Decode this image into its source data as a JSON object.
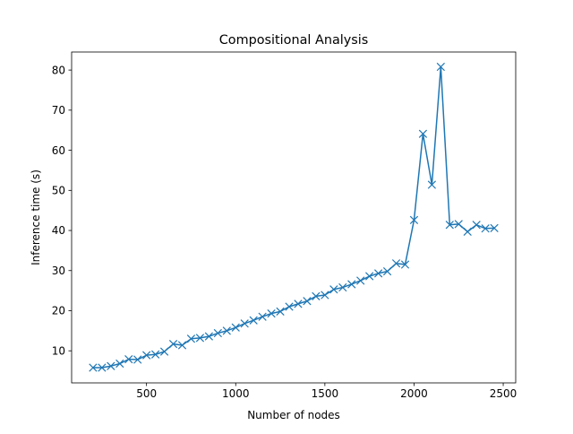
{
  "chart_data": {
    "type": "line",
    "title": "Compositional Analysis",
    "xlabel": "Number of nodes",
    "ylabel": "Inference time (s)",
    "xlim": [
      80,
      2570
    ],
    "ylim": [
      2,
      84.5
    ],
    "xticks": [
      500,
      1000,
      1500,
      2000,
      2500
    ],
    "yticks": [
      10,
      20,
      30,
      40,
      50,
      60,
      70,
      80
    ],
    "grid": false,
    "marker": "x",
    "color": "#1f77b4",
    "series": [
      {
        "x": [
          200,
          250,
          300,
          350,
          400,
          450,
          500,
          550,
          600,
          650,
          700,
          750,
          800,
          850,
          900,
          950,
          1000,
          1050,
          1100,
          1150,
          1200,
          1250,
          1300,
          1350,
          1400,
          1450,
          1500,
          1550,
          1600,
          1650,
          1700,
          1750,
          1800,
          1850,
          1900,
          1950,
          2000,
          2050,
          2100,
          2150,
          2200,
          2250,
          2300,
          2350,
          2400,
          2450
        ],
        "y": [
          5.8,
          5.8,
          6.2,
          6.8,
          7.9,
          7.8,
          8.9,
          9.1,
          9.8,
          11.7,
          11.4,
          13.0,
          13.2,
          13.6,
          14.4,
          15.0,
          15.8,
          16.8,
          17.6,
          18.5,
          19.3,
          19.8,
          21.0,
          21.7,
          22.4,
          23.6,
          23.9,
          25.3,
          25.8,
          26.6,
          27.5,
          28.6,
          29.3,
          29.8,
          31.8,
          31.5,
          42.6,
          64.1,
          51.4,
          80.8,
          41.4,
          41.6,
          39.7,
          41.4,
          40.5,
          40.6
        ]
      }
    ]
  }
}
